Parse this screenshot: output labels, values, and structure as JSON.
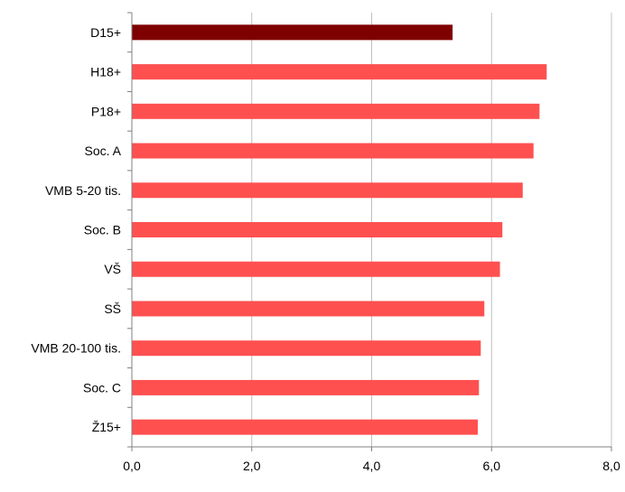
{
  "chart_data": {
    "type": "bar",
    "orientation": "horizontal",
    "categories": [
      "D15+",
      "H18+",
      "P18+",
      "Soc. A",
      "VMB 5-20 tis.",
      "Soc. B",
      "VŠ",
      "SŠ",
      "VMB 20-100 tis.",
      "Soc. C",
      "Ž15+"
    ],
    "values": [
      5.35,
      6.92,
      6.8,
      6.7,
      6.52,
      6.18,
      6.14,
      5.88,
      5.82,
      5.79,
      5.77
    ],
    "x_ticks": [
      "0,0",
      "2,0",
      "4,0",
      "6,0",
      "8,0"
    ],
    "xlim": [
      0,
      8
    ],
    "grid": "vertical",
    "title": "",
    "xlabel": "",
    "ylabel": "",
    "colors": {
      "highlight": "#7f0000",
      "bar": "#ff5050",
      "grid": "#c0c0c0",
      "axis": "#808080"
    }
  }
}
